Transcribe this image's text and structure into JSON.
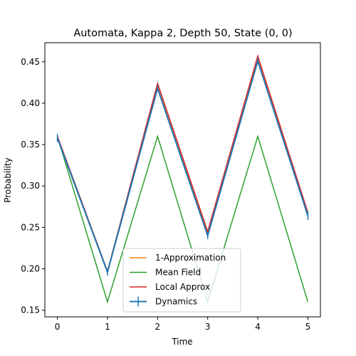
{
  "chart_data": {
    "type": "line",
    "title": "Automata, Kappa 2, Depth 50,  State (0, 0)",
    "xlabel": "Time",
    "ylabel": "Probability",
    "xlim": [
      -0.25,
      5.25
    ],
    "ylim": [
      0.142,
      0.473
    ],
    "xticks": [
      "0",
      "1",
      "2",
      "3",
      "4",
      "5"
    ],
    "yticks": [
      "0.15",
      "0.20",
      "0.25",
      "0.30",
      "0.35",
      "0.40",
      "0.45"
    ],
    "x": [
      0,
      1,
      2,
      3,
      4,
      5
    ],
    "grid": false,
    "legend_position": "lower center",
    "series": [
      {
        "name": "1-Approximation",
        "color": "#ff7f0e",
        "values": [
          0.36,
          0.197,
          0.423,
          0.244,
          0.456,
          0.267
        ]
      },
      {
        "name": "Mean Field",
        "color": "#2ca02c",
        "values": [
          0.36,
          0.16,
          0.36,
          0.16,
          0.36,
          0.16
        ]
      },
      {
        "name": "Local Approx",
        "color": "#d62728",
        "values": [
          0.36,
          0.197,
          0.424,
          0.245,
          0.457,
          0.268
        ]
      },
      {
        "name": "Dynamics",
        "color": "#1f77b4",
        "values": [
          0.358,
          0.196,
          0.418,
          0.24,
          0.451,
          0.264
        ],
        "errors": [
          0.005,
          0.004,
          0.004,
          0.004,
          0.004,
          0.005
        ]
      }
    ]
  }
}
